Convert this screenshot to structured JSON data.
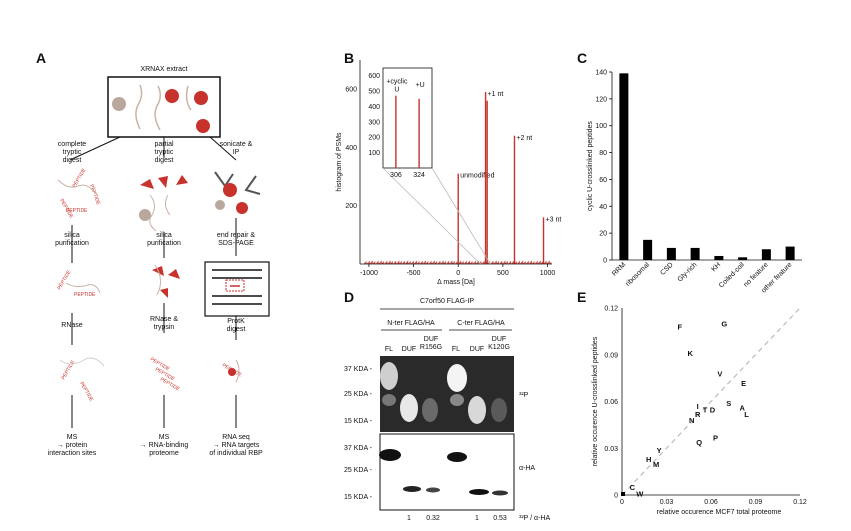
{
  "panels": {
    "a": "A",
    "b": "B",
    "c": "C",
    "d": "D",
    "e": "E"
  },
  "panel_a": {
    "extract_title": "XRNAX extract",
    "col1_step1": "complete\ntryptic\ndigest",
    "col2_step1": "partial\ntryptic\ndigest",
    "col3_step1": "sonicate &\nIP",
    "col1_step2": "silica\npurification",
    "col2_step2": "silica\npurification",
    "col3_step2": "end repair &\nSDS-PAGE",
    "col1_step3": "RNase",
    "col2_step3": "RNase &\ntrypsin",
    "col3_step3": "ProtK\ndigest",
    "col1_out": "MS\n→ protein\ninteraction sites",
    "col2_out": "MS\n→ RNA-binding\nproteome",
    "col3_out": "RNA seq\n→ RNA targets\nof individual RBP",
    "peptide_word": "PEPTIDE"
  },
  "panel_d": {
    "title": "C7orf50 FLAG-IP",
    "group1": "N-ter FLAG/HA",
    "group2": "C-ter FLAG/HA",
    "lanes": [
      "FL",
      "DUF",
      "DUF\nR156G",
      "FL",
      "DUF",
      "DUF\nK120G"
    ],
    "markers_top": [
      "37 KDA -",
      "25 KDA -",
      "15 KDA -"
    ],
    "markers_bottom": [
      "37 KDA -",
      "25 KDA -",
      "15 KDA -"
    ],
    "label_top": "³²P",
    "label_bottom": "α-HA",
    "ratio_label": "³²P / α-HA",
    "ratios": [
      "1",
      "0.32",
      "1",
      "0.53"
    ]
  },
  "chart_data": [
    {
      "panel": "B",
      "type": "line",
      "xlabel": "Δ mass [Da]",
      "ylabel": "histogram of PSMs",
      "xlim": [
        -1100,
        1050
      ],
      "ylim": [
        0,
        700
      ],
      "xticks": [
        "-1000",
        "-500",
        "0",
        "500",
        "1000"
      ],
      "yticks": [
        "200",
        "400",
        "600"
      ],
      "peaks": [
        {
          "x": 0,
          "y": 310,
          "label": "unmodified"
        },
        {
          "x": 306,
          "y": 590,
          "label": "+1 nt"
        },
        {
          "x": 324,
          "y": 560,
          "label": ""
        },
        {
          "x": 630,
          "y": 440,
          "label": "+2 nt"
        },
        {
          "x": 955,
          "y": 160,
          "label": "+3 nt"
        }
      ],
      "inset": {
        "xticks": [
          "306",
          "324"
        ],
        "yticks": [
          "100",
          "200",
          "300",
          "400",
          "500",
          "600"
        ],
        "peaks": [
          {
            "x": 306,
            "y": 470,
            "label": "+cyclic\nU"
          },
          {
            "x": 324,
            "y": 450,
            "label": "+U"
          }
        ]
      }
    },
    {
      "panel": "C",
      "type": "bar",
      "ylabel": "cyclic U-crosslinked peptides",
      "ylim": [
        0,
        140
      ],
      "yticks": [
        "0",
        "20",
        "40",
        "60",
        "80",
        "100",
        "120",
        "140"
      ],
      "categories": [
        "RRM",
        "ribosomal",
        "CSD",
        "Gly-rich",
        "KH",
        "Coiled-coil",
        "no feature",
        "other feature"
      ],
      "values": [
        139,
        15,
        9,
        9,
        3,
        2,
        8,
        10
      ]
    },
    {
      "panel": "E",
      "type": "scatter",
      "xlabel": "relative occurence MCF7 total proteome",
      "ylabel": "relative occurence U-crosslinked peptides",
      "xlim": [
        0,
        0.12
      ],
      "ylim": [
        0,
        0.12
      ],
      "xticks": [
        "0",
        "0.03",
        "0.06",
        "0.09",
        "0.12"
      ],
      "yticks": [
        "0",
        "0.03",
        "0.06",
        "0.09",
        "0.12"
      ],
      "points": [
        {
          "label": "F",
          "x": 0.039,
          "y": 0.108
        },
        {
          "label": "G",
          "x": 0.069,
          "y": 0.11
        },
        {
          "label": "K",
          "x": 0.046,
          "y": 0.091
        },
        {
          "label": "V",
          "x": 0.066,
          "y": 0.078
        },
        {
          "label": "E",
          "x": 0.082,
          "y": 0.072
        },
        {
          "label": "S",
          "x": 0.072,
          "y": 0.059
        },
        {
          "label": "A",
          "x": 0.081,
          "y": 0.056
        },
        {
          "label": "L",
          "x": 0.084,
          "y": 0.052
        },
        {
          "label": "I",
          "x": 0.051,
          "y": 0.057
        },
        {
          "label": "T",
          "x": 0.056,
          "y": 0.055
        },
        {
          "label": "D",
          "x": 0.061,
          "y": 0.055
        },
        {
          "label": "R",
          "x": 0.051,
          "y": 0.052
        },
        {
          "label": "N",
          "x": 0.047,
          "y": 0.048
        },
        {
          "label": "P",
          "x": 0.063,
          "y": 0.037
        },
        {
          "label": "Q",
          "x": 0.052,
          "y": 0.034
        },
        {
          "label": "Y",
          "x": 0.025,
          "y": 0.029
        },
        {
          "label": "H",
          "x": 0.018,
          "y": 0.023
        },
        {
          "label": "M",
          "x": 0.023,
          "y": 0.02
        },
        {
          "label": "C",
          "x": 0.007,
          "y": 0.005
        },
        {
          "label": "W",
          "x": 0.012,
          "y": 0.001
        }
      ]
    }
  ]
}
